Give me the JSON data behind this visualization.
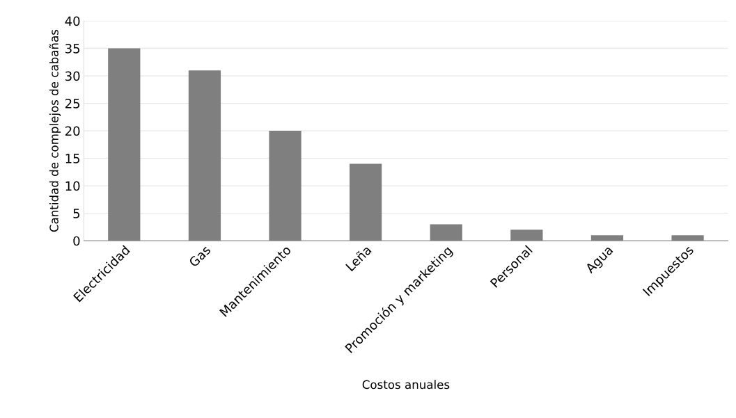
{
  "chart_data": {
    "type": "bar",
    "categories": [
      "Electricidad",
      "Gas",
      "Mantenimiento",
      "Leña",
      "Promoción y marketing",
      "Personal",
      "Agua",
      "Impuestos"
    ],
    "values": [
      35,
      31,
      20,
      14,
      3,
      2,
      1,
      1
    ],
    "color": "#7f7f7f",
    "xlabel": "Costos anuales",
    "ylabel": "Cantidad de complejos de cabañas",
    "ylim": [
      0,
      40
    ],
    "yticks": [
      0,
      5,
      10,
      15,
      20,
      25,
      30,
      35,
      40
    ],
    "grid": "y",
    "legend": false
  }
}
